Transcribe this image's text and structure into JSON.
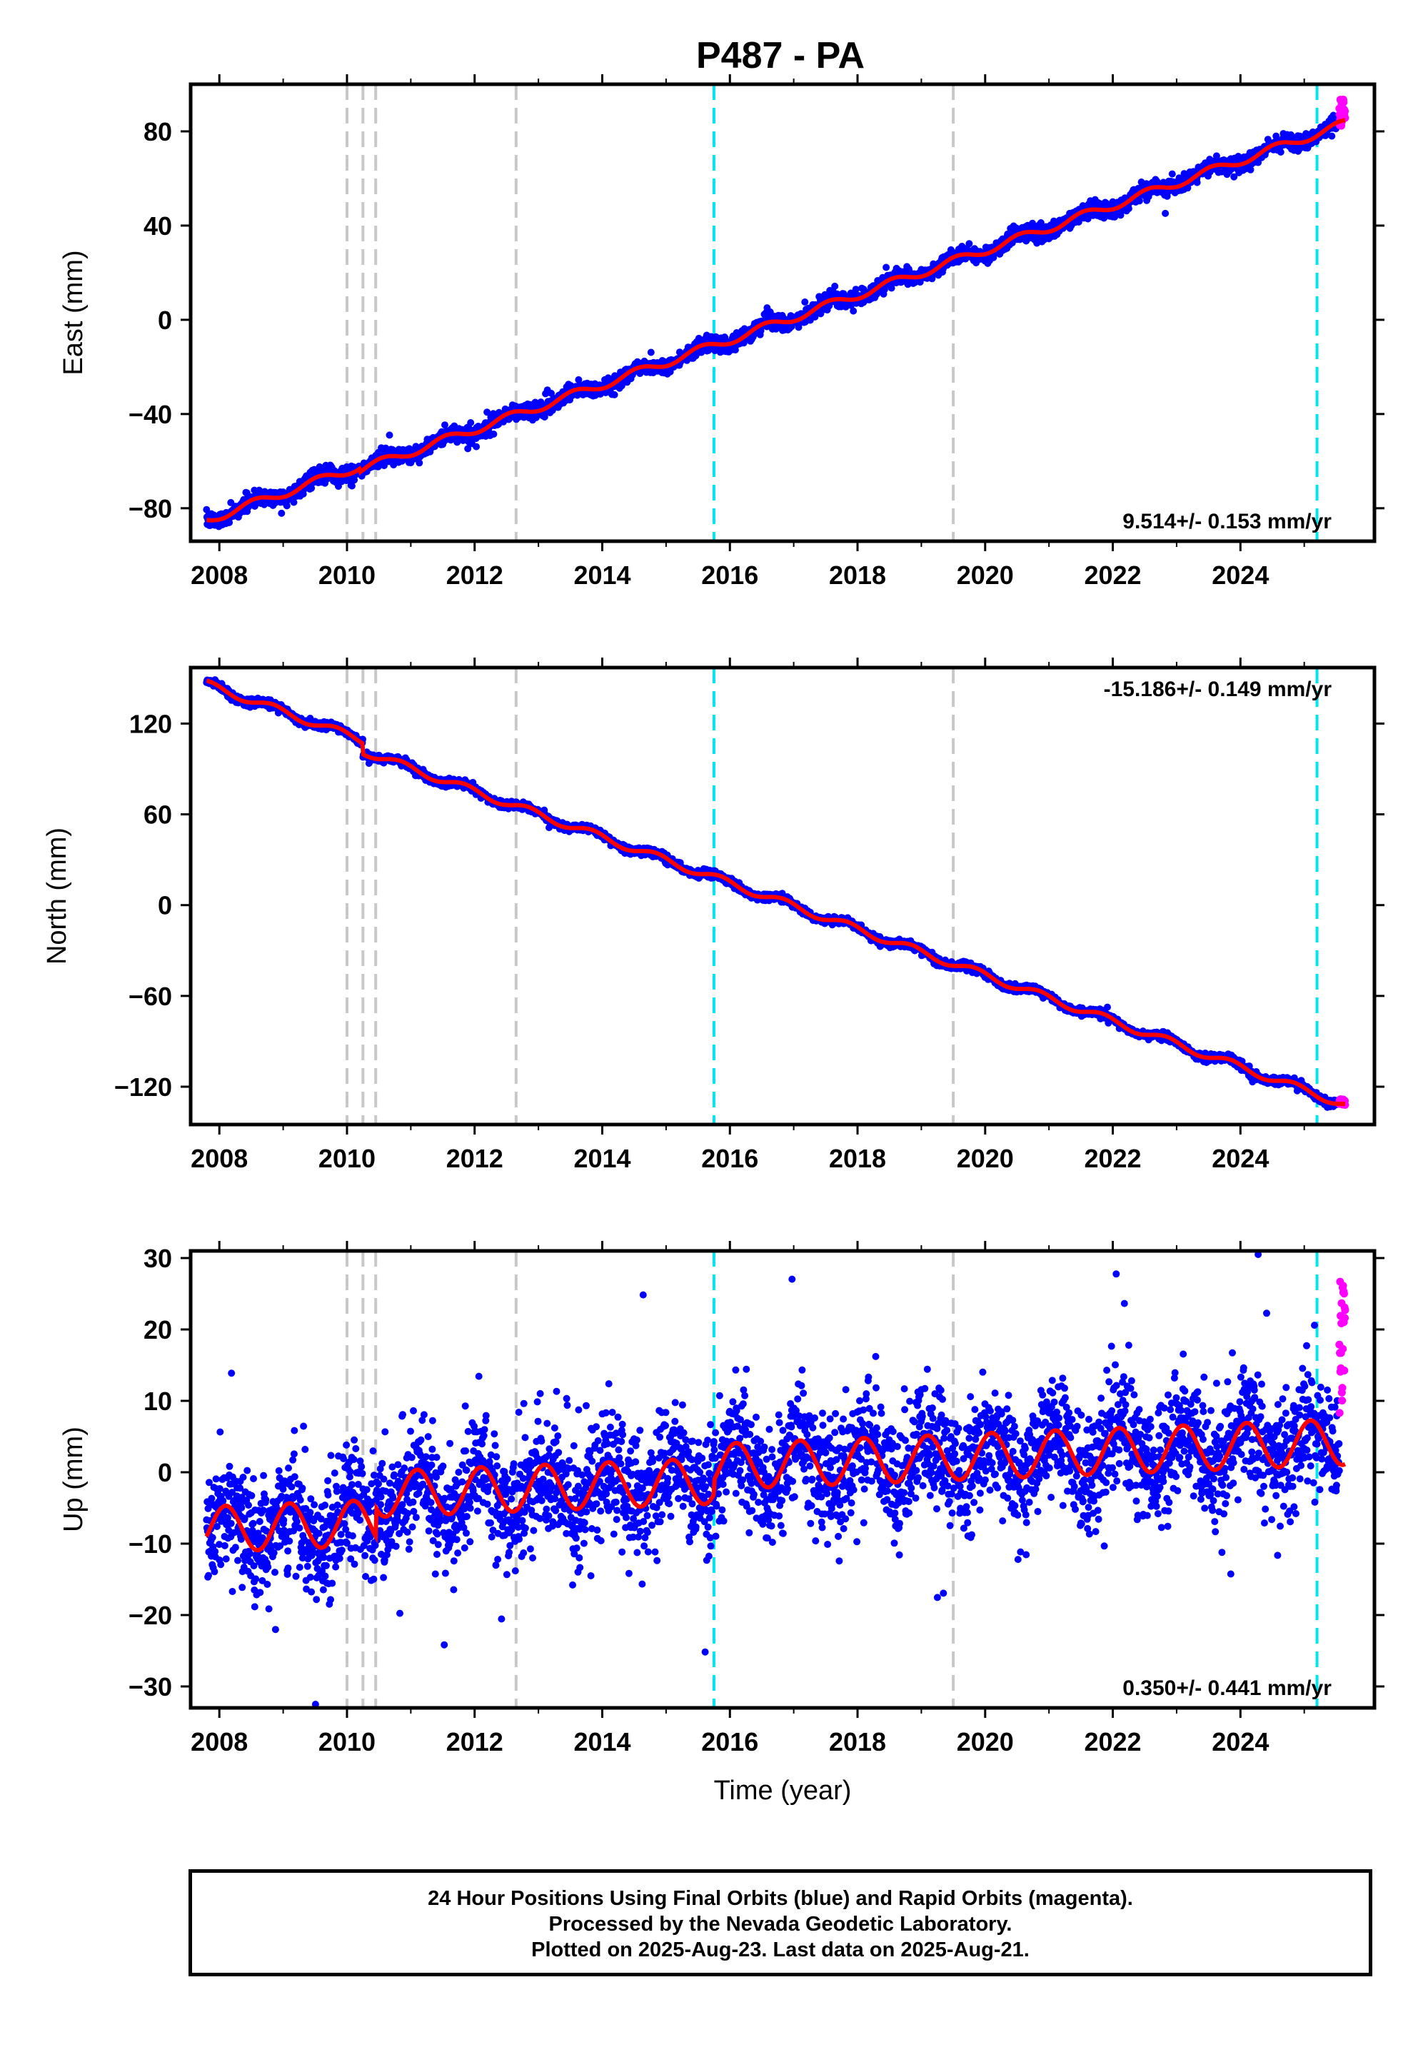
{
  "title": "P487 - PA",
  "footer": {
    "line1": "24 Hour Positions Using Final Orbits (blue) and Rapid Orbits (magenta).",
    "line2": "Processed by the Nevada Geodetic Laboratory.",
    "line3": "Plotted on 2025-Aug-23. Last data on 2025-Aug-21."
  },
  "colors": {
    "final_orbits": "#0000ff",
    "rapid_orbits": "#ff00ff",
    "model": "#ff0000",
    "steps_gray": "#c8c8c8",
    "steps_cyan": "#00e5ee"
  },
  "chart_data": [
    {
      "type": "scatter",
      "panel": "east",
      "ylabel": "East (mm)",
      "xlabel": "",
      "xlim": [
        2007.55,
        2026.1
      ],
      "ylim": [
        -94,
        100
      ],
      "xticks": [
        "2008",
        "2010",
        "2012",
        "2014",
        "2016",
        "2018",
        "2020",
        "2022",
        "2024"
      ],
      "yticks": [
        "80",
        "40",
        "0",
        "−40",
        "−80"
      ],
      "ytick_values": [
        80,
        40,
        0,
        -40,
        -80
      ],
      "rate_label": "9.514+/- 0.153 mm/yr",
      "rate": 9.514,
      "model_at_start": -85,
      "t_start": 2007.8,
      "t_end_final": 2025.55,
      "t_end_rapid": 2025.64,
      "annual_amp": 1.8,
      "annual_phase": 0.3,
      "noise_sd": 1.6,
      "offsets": [
        {
          "t": 2010.2,
          "dy": -1.5
        }
      ],
      "rapid_extra": [
        82,
        94
      ],
      "steps_gray": [
        2010.0,
        2010.25,
        2010.45,
        2012.65,
        2019.5
      ],
      "steps_cyan": [
        2015.75,
        2025.2
      ],
      "series": [
        {
          "name": "Final Orbits (blue)",
          "color": "#0000ff"
        },
        {
          "name": "Rapid Orbits (magenta)",
          "color": "#ff00ff"
        }
      ]
    },
    {
      "type": "scatter",
      "panel": "north",
      "ylabel": "North (mm)",
      "xlabel": "",
      "xlim": [
        2007.55,
        2026.1
      ],
      "ylim": [
        -145,
        157
      ],
      "xticks": [
        "2008",
        "2010",
        "2012",
        "2014",
        "2016",
        "2018",
        "2020",
        "2022",
        "2024"
      ],
      "yticks": [
        "120",
        "60",
        "0",
        "−60",
        "−120"
      ],
      "ytick_values": [
        120,
        60,
        0,
        -60,
        -120
      ],
      "rate_label": "-15.186+/- 0.149 mm/yr",
      "rate": -15.186,
      "model_at_start": 146,
      "t_start": 2007.8,
      "t_end_final": 2025.55,
      "t_end_rapid": 2025.64,
      "annual_amp": 2.5,
      "annual_phase": 0.6,
      "noise_sd": 1.2,
      "offsets": [
        {
          "t": 2010.25,
          "dy": -7
        }
      ],
      "rapid_extra": [
        -128,
        -132
      ],
      "steps_gray": [
        2010.0,
        2010.25,
        2010.45,
        2012.65,
        2019.5
      ],
      "steps_cyan": [
        2015.75,
        2025.2
      ],
      "series": [
        {
          "name": "Final Orbits (blue)",
          "color": "#0000ff"
        },
        {
          "name": "Rapid Orbits (magenta)",
          "color": "#ff00ff"
        }
      ]
    },
    {
      "type": "scatter",
      "panel": "up",
      "ylabel": "Up (mm)",
      "xlabel": "Time (year)",
      "xlim": [
        2007.55,
        2026.1
      ],
      "ylim": [
        -33,
        31
      ],
      "xticks": [
        "2008",
        "2010",
        "2012",
        "2014",
        "2016",
        "2018",
        "2020",
        "2022",
        "2024"
      ],
      "yticks": [
        "30",
        "20",
        "10",
        "0",
        "−10",
        "−20",
        "−30"
      ],
      "ytick_values": [
        30,
        20,
        10,
        0,
        -10,
        -20,
        -30
      ],
      "rate_label": "0.350+/- 0.441 mm/yr",
      "rate": 0.35,
      "model_at_start": -8,
      "t_start": 2007.8,
      "t_end_final": 2025.55,
      "t_end_rapid": 2025.64,
      "annual_amp": 3.2,
      "annual_phase": 0.85,
      "noise_sd": 4.2,
      "offsets": [
        {
          "t": 2010.45,
          "dy": 4
        },
        {
          "t": 2015.75,
          "dy": 2
        }
      ],
      "rapid_extra": [
        8,
        23,
        29.5
      ],
      "steps_gray": [
        2010.0,
        2010.25,
        2010.45,
        2012.65,
        2019.5
      ],
      "steps_cyan": [
        2015.75,
        2025.2
      ],
      "series": [
        {
          "name": "Final Orbits (blue)",
          "color": "#0000ff"
        },
        {
          "name": "Rapid Orbits (magenta)",
          "color": "#ff00ff"
        }
      ]
    }
  ]
}
